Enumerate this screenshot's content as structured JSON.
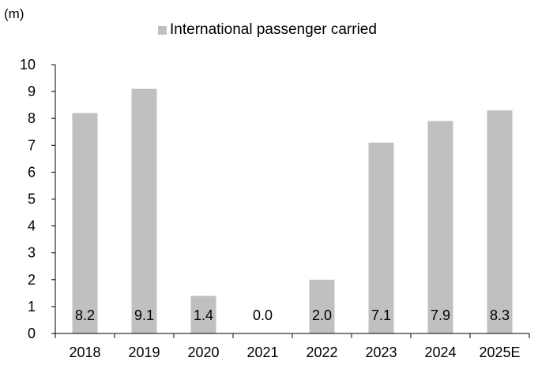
{
  "chart_data": {
    "type": "bar",
    "unit_label": "(m)",
    "categories": [
      "2018",
      "2019",
      "2020",
      "2021",
      "2022",
      "2023",
      "2024",
      "2025E"
    ],
    "series": [
      {
        "name": "International passenger carried",
        "values": [
          8.2,
          9.1,
          1.4,
          0.0,
          2.0,
          7.1,
          7.9,
          8.3
        ],
        "value_labels": [
          "8.2",
          "9.1",
          "1.4",
          "0.0",
          "2.0",
          "7.1",
          "7.9",
          "8.3"
        ],
        "color": "#c0c0c0"
      }
    ],
    "ylim": [
      0,
      10
    ],
    "yticks": [
      0,
      1,
      2,
      3,
      4,
      5,
      6,
      7,
      8,
      9,
      10
    ],
    "legend_position": "top-center",
    "grid": false
  }
}
